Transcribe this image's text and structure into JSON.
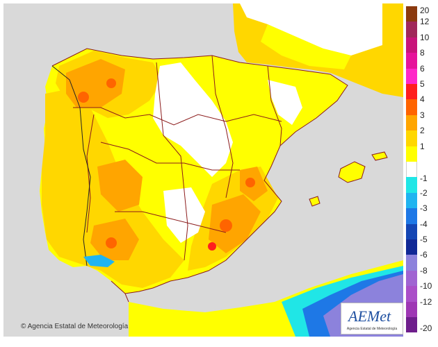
{
  "map": {
    "copyright": "© Agencia Estatal de Meteorología",
    "colors": {
      "sea": "#d9d9d9",
      "land_neutral": "#ffffff",
      "plus1": "#ffff00",
      "plus2": "#ffd700",
      "plus3": "#ffa500",
      "plus4": "#ff6400",
      "plus5": "#ff1e1e",
      "minus1": "#20e6e6",
      "minus2": "#20b4f0",
      "minus3": "#1e78e6",
      "minus4": "#1446b4",
      "minus5": "#102896",
      "minus6": "#8c82dc",
      "minus8": "#a064d2"
    }
  },
  "legend": {
    "labels": [
      "20",
      "12",
      "10",
      "8",
      "6",
      "5",
      "4",
      "3",
      "2",
      "1",
      "-1",
      "-2",
      "-3",
      "-4",
      "-5",
      "-6",
      "-8",
      "-10",
      "-12",
      "-20"
    ],
    "colors_top": [
      "#8b3a0f",
      "#a0285a",
      "#c8147a",
      "#e6149b",
      "#ff28c8",
      "#ff1e1e",
      "#ff6400",
      "#ffa500",
      "#ffd700",
      "#ffff00"
    ],
    "colors_bottom": [
      "#20e6e6",
      "#20b4f0",
      "#1e78e6",
      "#1446b4",
      "#102896",
      "#8c82dc",
      "#a064d2",
      "#aa4fc8",
      "#9e37b4",
      "#6e1e8c"
    ]
  },
  "logo": {
    "name": "AEMet",
    "subtitle": "Agencia Estatal de Meteorología"
  }
}
